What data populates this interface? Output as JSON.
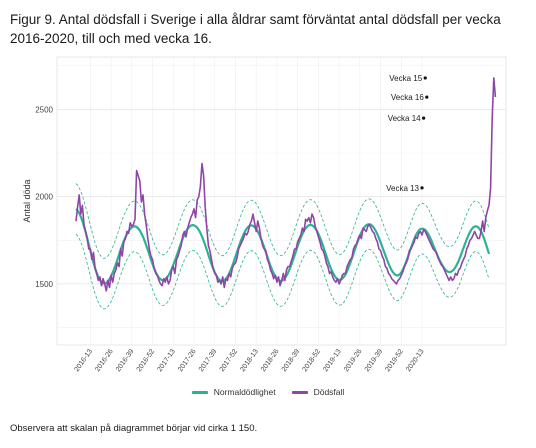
{
  "figure_title": "Figur 9. Antal dödsfall i Sverige i alla åldrar samt förväntat antal dödsfall per vecka 2016-2020, till och med vecka 16.",
  "note": "Observera att skalan på diagrammet börjar vid cirka 1 150.",
  "colors": {
    "normal": "#2ab494",
    "deaths": "#8f45a8",
    "band": "#2ab494"
  },
  "legend": [
    {
      "label": "Normaldödlighet",
      "key": "normal"
    },
    {
      "label": "Dödsfall",
      "key": "deaths"
    }
  ],
  "chart_data": {
    "type": "line",
    "ylabel": "Antal döda",
    "ylim": [
      1150,
      2800
    ],
    "yticks": [
      1500,
      2000,
      2500
    ],
    "x_ticks": [
      "2016-13",
      "2016-26",
      "2016-39",
      "2016-52",
      "2017-13",
      "2017-26",
      "2017-39",
      "2017-52",
      "2018-13",
      "2018-26",
      "2018-39",
      "2018-52",
      "2019-13",
      "2019-26",
      "2019-39",
      "2019-52",
      "2020-13"
    ],
    "grid": true,
    "legend_position": "bottom",
    "x_start": "2016-04",
    "y_normal_band": "dashed lines around normaldödlighet",
    "annotations": [
      {
        "label": "Vecka 15",
        "week": "2020-15",
        "value": 2680
      },
      {
        "label": "Vecka 16",
        "week": "2020-16",
        "value": 2570
      },
      {
        "label": "Vecka 14",
        "week": "2020-14",
        "value": 2450
      },
      {
        "label": "Vecka 13",
        "week": "2020-13",
        "value": 2050
      }
    ],
    "series": [
      {
        "name": "Normaldödlighet",
        "key": "normal",
        "values": [
          1930,
          1920,
          1905,
          1885,
          1860,
          1830,
          1798,
          1762,
          1725,
          1690,
          1655,
          1621,
          1590,
          1562,
          1540,
          1522,
          1510,
          1503,
          1502,
          1506,
          1515,
          1528,
          1545,
          1565,
          1588,
          1614,
          1641,
          1668,
          1695,
          1721,
          1745,
          1767,
          1786,
          1802,
          1815,
          1824,
          1829,
          1830,
          1826,
          1818,
          1806,
          1789,
          1770,
          1747,
          1722,
          1695,
          1668,
          1640,
          1614,
          1590,
          1568,
          1550,
          1536,
          1527,
          1522,
          1522,
          1527,
          1536,
          1549,
          1566,
          1586,
          1609,
          1633,
          1659,
          1685,
          1711,
          1737,
          1760,
          1782,
          1800,
          1815,
          1826,
          1834,
          1837,
          1836,
          1831,
          1822,
          1809,
          1792,
          1771,
          1748,
          1722,
          1695,
          1667,
          1640,
          1613,
          1589,
          1567,
          1548,
          1533,
          1523,
          1517,
          1516,
          1520,
          1529,
          1542,
          1559,
          1580,
          1604,
          1630,
          1657,
          1684,
          1711,
          1737,
          1761,
          1782,
          1801,
          1816,
          1827,
          1833,
          1835,
          1833,
          1826,
          1815,
          1800,
          1781,
          1759,
          1735,
          1709,
          1682,
          1655,
          1628,
          1603,
          1580,
          1560,
          1543,
          1530,
          1521,
          1517,
          1518,
          1523,
          1533,
          1547,
          1565,
          1586,
          1610,
          1636,
          1662,
          1689,
          1716,
          1741,
          1765,
          1786,
          1804,
          1818,
          1829,
          1836,
          1838,
          1836,
          1830,
          1820,
          1805,
          1787,
          1765,
          1741,
          1715,
          1688,
          1661,
          1634,
          1609,
          1586,
          1566,
          1549,
          1536,
          1527,
          1523,
          1524,
          1530,
          1540,
          1555,
          1574,
          1596,
          1620,
          1646,
          1673,
          1700,
          1726,
          1751,
          1774,
          1795,
          1812,
          1826,
          1836,
          1841,
          1842,
          1839,
          1831,
          1819,
          1803,
          1784,
          1762,
          1738,
          1713,
          1688,
          1664,
          1640,
          1617,
          1596,
          1578,
          1564,
          1554,
          1549,
          1549,
          1555,
          1566,
          1582,
          1603,
          1626,
          1652,
          1679,
          1706,
          1731,
          1755,
          1776,
          1793,
          1806,
          1814,
          1817,
          1815,
          1809,
          1798,
          1784,
          1766,
          1745,
          1723,
          1700,
          1677,
          1656,
          1636,
          1618,
          1602,
          1588,
          1578,
          1571,
          1568,
          1569,
          1574,
          1583,
          1596,
          1613,
          1633,
          1656,
          1681,
          1706,
          1731,
          1755,
          1777,
          1796,
          1812,
          1823,
          1829,
          1830,
          1826,
          1816,
          1802,
          1782,
          1758,
          1731,
          1702,
          1672
        ]
      },
      {
        "name": "Dödsfall",
        "key": "deaths",
        "values": [
          1860,
          1940,
          2010,
          1900,
          1950,
          1840,
          1800,
          1760,
          1700,
          1700,
          1640,
          1680,
          1590,
          1560,
          1520,
          1540,
          1490,
          1530,
          1500,
          1460,
          1520,
          1480,
          1550,
          1510,
          1560,
          1580,
          1620,
          1600,
          1700,
          1660,
          1740,
          1760,
          1800,
          1790,
          1850,
          1830,
          1840,
          1870,
          2150,
          2120,
          2090,
          1970,
          2010,
          1900,
          1840,
          1760,
          1700,
          1660,
          1640,
          1590,
          1560,
          1550,
          1520,
          1500,
          1490,
          1530,
          1510,
          1540,
          1500,
          1520,
          1580,
          1600,
          1560,
          1640,
          1660,
          1690,
          1720,
          1780,
          1800,
          1770,
          1820,
          1850,
          1880,
          1900,
          1930,
          1880,
          1980,
          2000,
          2060,
          2190,
          2120,
          1940,
          1820,
          1720,
          1690,
          1640,
          1590,
          1560,
          1550,
          1510,
          1520,
          1500,
          1540,
          1480,
          1530,
          1520,
          1560,
          1540,
          1590,
          1610,
          1620,
          1650,
          1700,
          1720,
          1740,
          1760,
          1790,
          1780,
          1800,
          1840,
          1860,
          1900,
          1850,
          1800,
          1860,
          1820,
          1760,
          1720,
          1700,
          1690,
          1640,
          1620,
          1580,
          1560,
          1530,
          1550,
          1510,
          1540,
          1490,
          1520,
          1560,
          1520,
          1580,
          1600,
          1600,
          1630,
          1660,
          1700,
          1700,
          1740,
          1760,
          1780,
          1820,
          1800,
          1870,
          1860,
          1880,
          1850,
          1900,
          1880,
          1830,
          1800,
          1770,
          1740,
          1700,
          1690,
          1660,
          1620,
          1600,
          1560,
          1570,
          1540,
          1520,
          1510,
          1530,
          1500,
          1520,
          1550,
          1560,
          1560,
          1600,
          1620,
          1640,
          1650,
          1700,
          1720,
          1730,
          1760,
          1780,
          1760,
          1820,
          1810,
          1800,
          1830,
          1840,
          1820,
          1800,
          1790,
          1760,
          1740,
          1700,
          1690,
          1660,
          1640,
          1600,
          1590,
          1560,
          1550,
          1530,
          1520,
          1510,
          1500,
          1520,
          1530,
          1550,
          1570,
          1600,
          1620,
          1640,
          1690,
          1700,
          1720,
          1740,
          1770,
          1760,
          1790,
          1800,
          1780,
          1810,
          1800,
          1780,
          1760,
          1740,
          1720,
          1700,
          1690,
          1680,
          1650,
          1630,
          1610,
          1600,
          1580,
          1560,
          1540,
          1520,
          1540,
          1520,
          1530,
          1560,
          1550,
          1580,
          1590,
          1620,
          1640,
          1660,
          1700,
          1720,
          1750,
          1760,
          1780,
          1800,
          1780,
          1760,
          1760,
          1800,
          1860,
          1800,
          1880,
          1920,
          1950,
          2050,
          2450,
          2680,
          2570
        ]
      }
    ]
  }
}
